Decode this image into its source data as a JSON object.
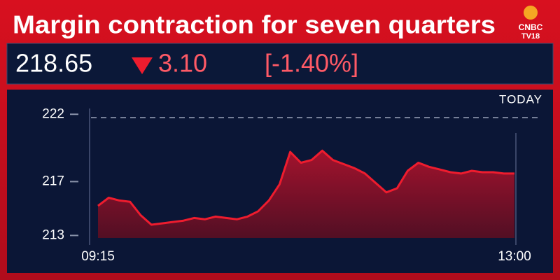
{
  "chart_data": {
    "type": "area",
    "title": "Margin contraction for seven quarters",
    "logo": [
      "CNBC",
      "TV18"
    ],
    "price": "218.65",
    "change": "3.10",
    "change_pct": "[-1.40%]",
    "period_label": "TODAY",
    "categories": [
      "09:15",
      null,
      null,
      null,
      null,
      null,
      null,
      null,
      null,
      null,
      null,
      null,
      null,
      null,
      null,
      null,
      null,
      null,
      null,
      null,
      null,
      null,
      null,
      null,
      null,
      null,
      null,
      null,
      null,
      null,
      null,
      null,
      null,
      null,
      null,
      null,
      null,
      null,
      null,
      "13:00"
    ],
    "values": [
      215.2,
      215.8,
      215.6,
      215.5,
      214.5,
      213.8,
      213.9,
      214.0,
      214.1,
      214.3,
      214.2,
      214.4,
      214.3,
      214.2,
      214.4,
      214.8,
      215.6,
      216.8,
      219.2,
      218.4,
      218.6,
      219.3,
      218.6,
      218.3,
      218.0,
      217.6,
      216.9,
      216.2,
      216.5,
      217.8,
      218.4,
      218.1,
      217.9,
      217.7,
      217.6,
      217.8,
      217.7,
      217.7,
      217.6,
      217.6
    ],
    "color": "#ee1c2e",
    "reference_line": 221.75,
    "ylim": [
      212.5,
      223
    ],
    "yticks": [
      213,
      217,
      222
    ]
  }
}
